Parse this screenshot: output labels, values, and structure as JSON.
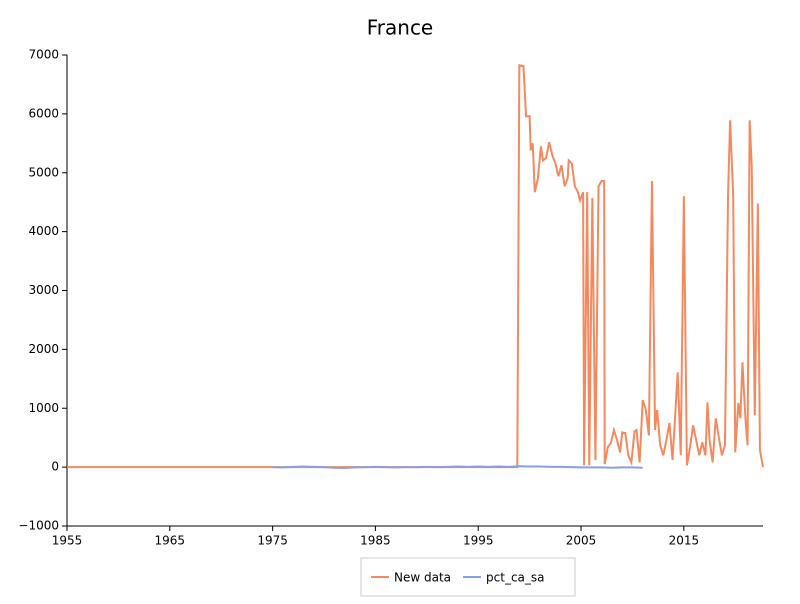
{
  "chart_data": {
    "type": "line",
    "title": "France",
    "xlim": [
      1955,
      2022.7
    ],
    "xticks": [
      1955,
      1965,
      1975,
      1985,
      1995,
      2005,
      2015
    ],
    "ylim": [
      -1000,
      7000
    ],
    "yticks": [
      {
        "value": -1000,
        "label": "−1000"
      },
      0,
      1000,
      2000,
      3000,
      4000,
      5000,
      6000,
      7000
    ],
    "legend": "bottom",
    "series": [
      {
        "name": "New data",
        "color": "#f4895f",
        "x": [
          1955,
          1998.8,
          1999.0,
          1999.4,
          1999.65,
          2000.0,
          2000.1,
          2000.3,
          2000.5,
          2000.8,
          2001.1,
          2001.3,
          2001.6,
          2001.9,
          2002.2,
          2002.5,
          2002.8,
          2003.1,
          2003.4,
          2003.7,
          2003.8,
          2004.1,
          2004.4,
          2004.7,
          2004.9,
          2005.2,
          2005.3,
          2005.6,
          2005.8,
          2006.1,
          2006.4,
          2006.7,
          2007.0,
          2007.25,
          2007.3,
          2007.6,
          2007.9,
          2008.2,
          2008.5,
          2008.8,
          2009.0,
          2009.3,
          2009.6,
          2009.9,
          2010.2,
          2010.4,
          2010.7,
          2011.0,
          2011.3,
          2011.6,
          2011.9,
          2012.2,
          2012.4,
          2012.7,
          2013.0,
          2013.3,
          2013.6,
          2013.9,
          2014.1,
          2014.4,
          2014.7,
          2015.0,
          2015.3,
          2015.6,
          2015.9,
          2016.2,
          2016.5,
          2016.8,
          2017.1,
          2017.3,
          2017.5,
          2017.8,
          2018.1,
          2018.4,
          2018.7,
          2019.0,
          2019.3,
          2019.5,
          2019.8,
          2020.0,
          2020.3,
          2020.5,
          2020.7,
          2021.0,
          2021.2,
          2021.4,
          2021.6,
          2021.9,
          2022.2,
          2022.4,
          2022.7
        ],
        "values": [
          0,
          0,
          6825,
          6810,
          5960,
          5960,
          5380,
          5500,
          4670,
          4900,
          5450,
          5210,
          5250,
          5520,
          5300,
          5160,
          4940,
          5130,
          4770,
          4910,
          5210,
          5160,
          4770,
          4670,
          4530,
          4670,
          30,
          4670,
          30,
          4570,
          120,
          4770,
          4860,
          4860,
          50,
          340,
          410,
          630,
          460,
          250,
          590,
          580,
          200,
          80,
          610,
          630,
          80,
          1140,
          980,
          540,
          4860,
          630,
          970,
          370,
          200,
          460,
          750,
          120,
          710,
          1610,
          200,
          4600,
          30,
          340,
          710,
          460,
          200,
          420,
          200,
          1100,
          460,
          80,
          830,
          510,
          200,
          370,
          4620,
          5890,
          4620,
          250,
          1090,
          830,
          1780,
          800,
          370,
          5890,
          5130,
          880,
          4480,
          290,
          0
        ]
      },
      {
        "name": "pct_ca_sa",
        "color": "#8b9fe0",
        "x": [
          1975,
          1976,
          1977,
          1978,
          1979,
          1980,
          1981,
          1982,
          1983,
          1984,
          1985,
          1986,
          1987,
          1988,
          1989,
          1990,
          1991,
          1992,
          1993,
          1994,
          1995,
          1996,
          1997,
          1998,
          1999,
          2000,
          2001,
          2002,
          2003,
          2004,
          2005,
          2006,
          2007,
          2008,
          2009,
          2010,
          2011
        ],
        "values": [
          0,
          -5,
          5,
          10,
          5,
          0,
          -10,
          -15,
          -5,
          0,
          5,
          0,
          -5,
          0,
          0,
          5,
          0,
          5,
          10,
          5,
          10,
          5,
          10,
          5,
          15,
          10,
          10,
          5,
          5,
          0,
          -5,
          -5,
          -5,
          -10,
          -5,
          -5,
          -10
        ]
      }
    ]
  }
}
